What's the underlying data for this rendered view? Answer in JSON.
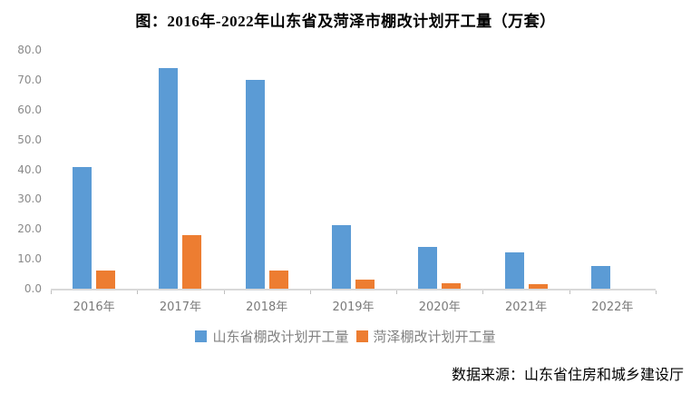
{
  "footer": {
    "source": "数据来源：山东省住房和城乡建设厅"
  },
  "chart_data": {
    "type": "bar",
    "title": "图：2016年-2022年山东省及菏泽市棚改计划开工量（万套）",
    "categories": [
      "2016年",
      "2017年",
      "2018年",
      "2019年",
      "2020年",
      "2021年",
      "2022年"
    ],
    "series": [
      {
        "name": "山东省棚改计划开工量",
        "color": "#5b9bd5",
        "values": [
          40.8,
          74.0,
          69.9,
          21.4,
          14.0,
          12.3,
          7.5
        ]
      },
      {
        "name": "菏泽棚改计划开工量",
        "color": "#ed7d31",
        "values": [
          6.2,
          18.0,
          6.1,
          3.0,
          1.9,
          1.6,
          0
        ]
      }
    ],
    "ylim": [
      0,
      80
    ],
    "ytick_step": 10,
    "ytick_labels": [
      "0.0",
      "10.0",
      "20.0",
      "30.0",
      "40.0",
      "50.0",
      "60.0",
      "70.0",
      "80.0"
    ],
    "grid": false,
    "legend_position": "bottom",
    "colors": {
      "axis_line": "#d9d9d9",
      "axis_tick": "#bfbfbf",
      "y_tick_label": "#8a8a8a",
      "x_tick_label": "#7a7a7a",
      "legend_text": "#808080",
      "title_text": "#000000",
      "source_text": "#000000",
      "background": "#ffffff"
    }
  }
}
